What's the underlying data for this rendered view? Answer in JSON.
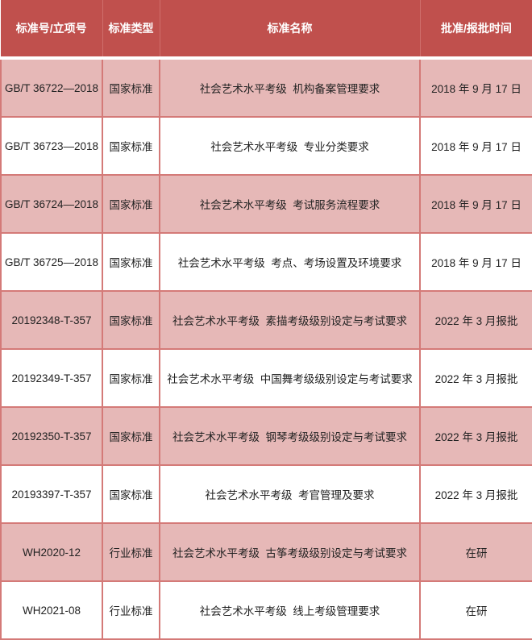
{
  "colors": {
    "header": "#c0504d",
    "alt_row": "#e6b8b7",
    "border": "#d47a78"
  },
  "headers": [
    "标准号/立项号",
    "标准类型",
    "标准名称",
    "批准/报批时间"
  ],
  "rows": [
    [
      "GB/T 36722—2018",
      "国家标准",
      "社会艺术水平考级  机构备案管理要求",
      "2018 年 9 月 17 日"
    ],
    [
      "GB/T 36723—2018",
      "国家标准",
      "社会艺术水平考级  专业分类要求",
      "2018 年 9 月 17 日"
    ],
    [
      "GB/T 36724—2018",
      "国家标准",
      "社会艺术水平考级  考试服务流程要求",
      "2018 年 9 月 17 日"
    ],
    [
      "GB/T 36725—2018",
      "国家标准",
      "社会艺术水平考级  考点、考场设置及环境要求",
      "2018 年 9 月 17 日"
    ],
    [
      "20192348-T-357",
      "国家标准",
      "社会艺术水平考级  素描考级级别设定与考试要求",
      "2022 年 3 月报批"
    ],
    [
      "20192349-T-357",
      "国家标准",
      "社会艺术水平考级  中国舞考级级别设定与考试要求",
      "2022 年 3 月报批"
    ],
    [
      "20192350-T-357",
      "国家标准",
      "社会艺术水平考级  钢琴考级级别设定与考试要求",
      "2022 年 3 月报批"
    ],
    [
      "20193397-T-357",
      "国家标准",
      "社会艺术水平考级  考官管理及要求",
      "2022 年 3 月报批"
    ],
    [
      "WH2020-12",
      "行业标准",
      "社会艺术水平考级  古筝考级级别设定与考试要求",
      "在研"
    ],
    [
      "WH2021-08",
      "行业标准",
      "社会艺术水平考级  线上考级管理要求",
      "在研"
    ]
  ]
}
